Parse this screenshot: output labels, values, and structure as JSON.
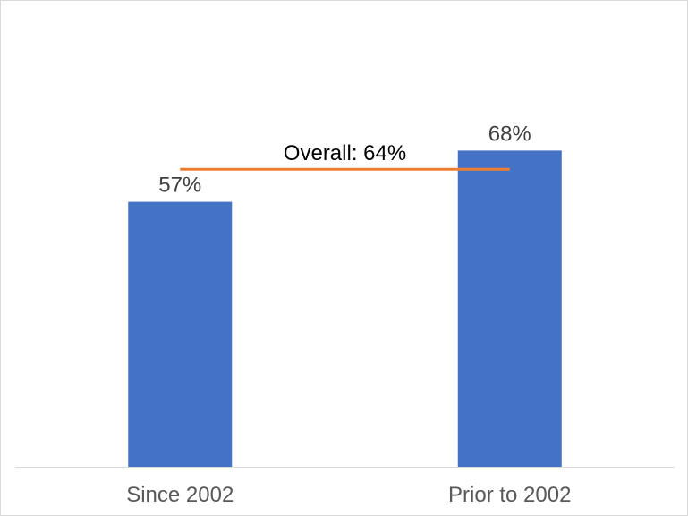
{
  "chart_data": {
    "type": "bar",
    "categories": [
      "Since 2002",
      "Prior to 2002"
    ],
    "values": [
      57,
      68
    ],
    "data_labels": [
      "57%",
      "68%"
    ],
    "unit": "%",
    "ylim": [
      0,
      75
    ],
    "grid": false,
    "legend": "none",
    "title": "",
    "xlabel": "",
    "ylabel": "",
    "reference_line": {
      "value": 64,
      "label": "Overall: 64%",
      "color": "#ED7D31"
    },
    "colors": {
      "bar": "#4472C4",
      "axis": "#d9d9d9"
    }
  }
}
